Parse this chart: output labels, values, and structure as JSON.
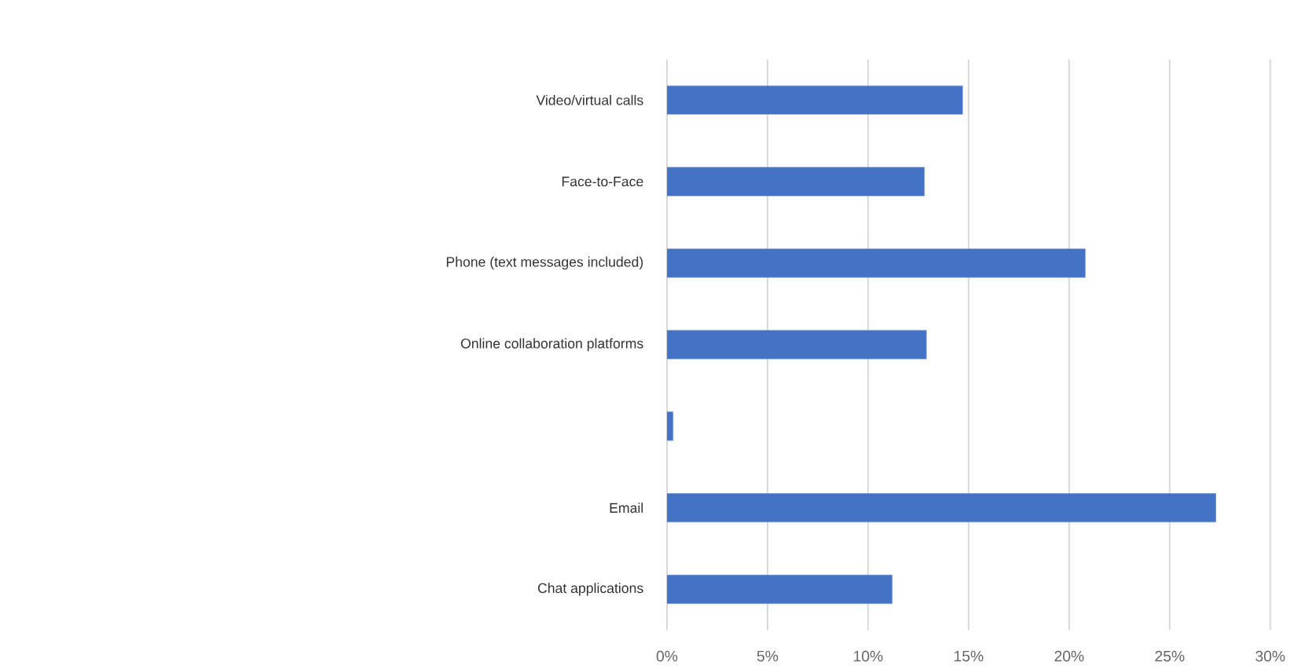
{
  "chart_data": {
    "type": "bar",
    "orientation": "horizontal",
    "categories": [
      "Video/virtual calls",
      "Face-to-Face",
      "Phone (text messages included)",
      "Online collaboration platforms",
      null,
      "Email",
      "Chat applications"
    ],
    "values": [
      14.7,
      12.8,
      20.8,
      12.9,
      0.3,
      27.3,
      11.2
    ],
    "color": "#4472c4",
    "xlim": [
      0,
      30
    ],
    "xticks": [
      {
        "value": 0,
        "label": "0%"
      },
      {
        "value": 5,
        "label": "5%"
      },
      {
        "value": 10,
        "label": "10%"
      },
      {
        "value": 15,
        "label": "15%"
      },
      {
        "value": 20,
        "label": "20%"
      },
      {
        "value": 25,
        "label": "25%"
      },
      {
        "value": 30,
        "label": "30%"
      }
    ],
    "grid": "x"
  }
}
